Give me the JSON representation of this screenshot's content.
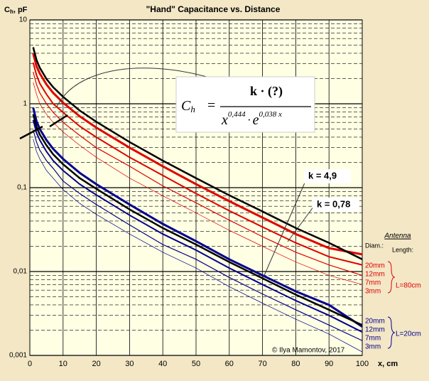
{
  "chart_data": {
    "type": "line",
    "title": "\"Hand\" Capacitance vs. Distance",
    "y_label": "C",
    "y_label_sub": "h",
    "y_label_unit": ", pF",
    "x_label": "x, cm",
    "log_y": true,
    "grid": true,
    "xlim": [
      0,
      100
    ],
    "xticks": [
      0,
      10,
      20,
      30,
      40,
      50,
      60,
      70,
      80,
      90,
      100
    ],
    "ylim": [
      0.001,
      10
    ],
    "yticks": [
      {
        "value": 0.001,
        "label": "0,001"
      },
      {
        "value": 0.01,
        "label": "0,01"
      },
      {
        "value": 0.1,
        "label": "0,1"
      },
      1,
      10
    ],
    "x": [
      1,
      2,
      3,
      5,
      7,
      10,
      15,
      20,
      30,
      40,
      50,
      60,
      70,
      80,
      90,
      100
    ],
    "series": [
      {
        "name": "20mm",
        "color": "#e00000",
        "width": 3,
        "values": [
          4.0,
          2.8,
          2.3,
          1.7,
          1.35,
          1.03,
          0.71,
          0.52,
          0.3,
          0.18,
          0.11,
          0.069,
          0.044,
          0.028,
          0.019,
          0.016
        ]
      },
      {
        "name": "12mm",
        "color": "#e00000",
        "width": 2,
        "values": [
          3.1,
          2.2,
          1.75,
          1.3,
          1.0,
          0.79,
          0.54,
          0.4,
          0.23,
          0.14,
          0.085,
          0.053,
          0.034,
          0.022,
          0.015,
          0.012
        ]
      },
      {
        "name": "7mm",
        "color": "#e00000",
        "width": 1.2,
        "values": [
          2.4,
          1.7,
          1.35,
          1.0,
          0.79,
          0.6,
          0.42,
          0.3,
          0.18,
          0.105,
          0.066,
          0.041,
          0.026,
          0.017,
          0.012,
          0.009
        ]
      },
      {
        "name": "3mm",
        "color": "#e00000",
        "width": 0.7,
        "values": [
          1.8,
          1.3,
          1.0,
          0.75,
          0.6,
          0.46,
          0.32,
          0.23,
          0.13,
          0.08,
          0.05,
          0.031,
          0.02,
          0.013,
          0.009,
          0.007
        ]
      },
      {
        "name": "20mm",
        "color": "#000090",
        "width": 3,
        "values": [
          0.9,
          0.62,
          0.5,
          0.37,
          0.29,
          0.22,
          0.15,
          0.11,
          0.063,
          0.037,
          0.023,
          0.014,
          0.009,
          0.0058,
          0.004,
          0.0022
        ]
      },
      {
        "name": "12mm",
        "color": "#000090",
        "width": 2,
        "values": [
          0.64,
          0.45,
          0.37,
          0.27,
          0.21,
          0.16,
          0.11,
          0.082,
          0.047,
          0.028,
          0.018,
          0.011,
          0.007,
          0.0045,
          0.003,
          0.0019
        ]
      },
      {
        "name": "7mm",
        "color": "#000090",
        "width": 1.2,
        "values": [
          0.49,
          0.35,
          0.28,
          0.21,
          0.17,
          0.12,
          0.085,
          0.063,
          0.036,
          0.021,
          0.014,
          0.0085,
          0.0054,
          0.0035,
          0.0023,
          0.0015
        ]
      },
      {
        "name": "3mm",
        "color": "#000090",
        "width": 0.7,
        "values": [
          0.38,
          0.27,
          0.22,
          0.16,
          0.13,
          0.095,
          0.065,
          0.048,
          0.028,
          0.017,
          0.011,
          0.0066,
          0.0042,
          0.0027,
          0.0018,
          0.0011
        ]
      }
    ],
    "fits": [
      {
        "label": "k = 4,9",
        "color": "#000000",
        "values": [
          4.72,
          3.34,
          2.69,
          1.98,
          1.58,
          1.21,
          0.83,
          0.61,
          0.35,
          0.21,
          0.13,
          0.081,
          0.052,
          0.033,
          0.022,
          0.014
        ]
      },
      {
        "label": "k = 0,78",
        "color": "#000000",
        "values": [
          0.75,
          0.53,
          0.43,
          0.32,
          0.25,
          0.19,
          0.13,
          0.097,
          0.055,
          0.033,
          0.021,
          0.013,
          0.0083,
          0.0053,
          0.0035,
          0.0023
        ]
      }
    ],
    "formula": {
      "lhs": "C",
      "lhs_sub": "h",
      "eq": "=",
      "numerator": "k · (?)",
      "base": "x",
      "exp1": "0,444",
      "dot": "·",
      "e": "e",
      "exp2": "0,038 x"
    },
    "antenna": {
      "title": "Antenna",
      "diam": "Diam.:",
      "length": "Length:",
      "group_labels": [
        "L=80cm",
        "L=20cm"
      ]
    },
    "credit": "© Ilya Mamontov, 2017"
  }
}
